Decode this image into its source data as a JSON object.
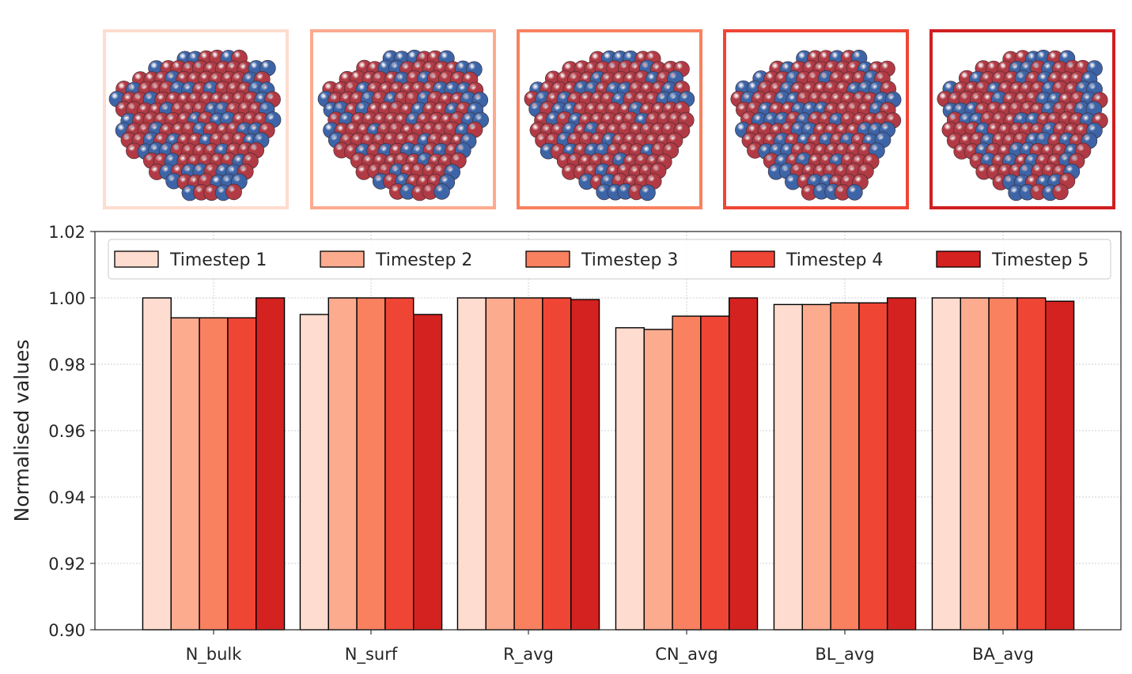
{
  "thumbnails": [
    {
      "label": "Timestep 1",
      "border_color": "#fedccf",
      "image": "nanoparticle-timestep-1"
    },
    {
      "label": "Timestep 2",
      "border_color": "#fcab8f",
      "image": "nanoparticle-timestep-2"
    },
    {
      "label": "Timestep 3",
      "border_color": "#f9815f",
      "image": "nanoparticle-timestep-3"
    },
    {
      "label": "Timestep 4",
      "border_color": "#ef4535",
      "image": "nanoparticle-timestep-4"
    },
    {
      "label": "Timestep 5",
      "border_color": "#cf1f21",
      "image": "nanoparticle-timestep-5"
    }
  ],
  "atom_colors": {
    "red": "#b13a44",
    "blue": "#3d64a7"
  },
  "chart_data": {
    "type": "bar",
    "title": "",
    "xlabel": "",
    "ylabel": "Normalised values",
    "ylim": [
      0.9,
      1.02
    ],
    "yticks": [
      "0.90",
      "0.92",
      "0.94",
      "0.96",
      "0.98",
      "1.00",
      "1.02"
    ],
    "categories": [
      "N_bulk",
      "N_surf",
      "R_avg",
      "CN_avg",
      "BL_avg",
      "BA_avg"
    ],
    "grid": true,
    "legend_position": "top",
    "series": [
      {
        "name": "Timestep 1",
        "color": "#fedccf",
        "values": [
          1.0,
          0.995,
          1.0,
          0.991,
          0.998,
          1.0
        ]
      },
      {
        "name": "Timestep 2",
        "color": "#fcab8f",
        "values": [
          0.994,
          1.0,
          1.0,
          0.9905,
          0.998,
          1.0
        ]
      },
      {
        "name": "Timestep 3",
        "color": "#f9815f",
        "values": [
          0.994,
          1.0,
          1.0,
          0.9945,
          0.9985,
          1.0
        ]
      },
      {
        "name": "Timestep 4",
        "color": "#ef4535",
        "values": [
          0.994,
          1.0,
          1.0,
          0.9945,
          0.9985,
          1.0
        ]
      },
      {
        "name": "Timestep 5",
        "color": "#d42220",
        "values": [
          1.0,
          0.995,
          0.9995,
          1.0,
          1.0,
          0.999
        ]
      }
    ]
  }
}
